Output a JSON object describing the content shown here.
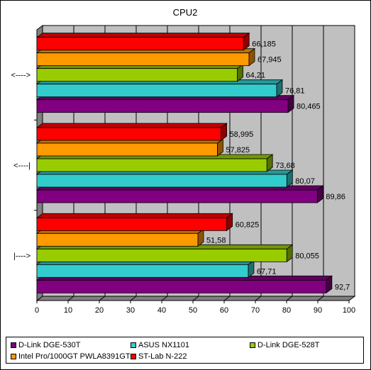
{
  "chart_data": {
    "type": "bar",
    "orientation": "horizontal",
    "title": "CPU2",
    "categories": [
      "<---->",
      "<----|",
      "|---->"
    ],
    "series": [
      {
        "name": "D-Link DGE-530T",
        "color": "#800080",
        "values": [
          80.465,
          89.86,
          92.7
        ],
        "labels": [
          "80,465",
          "89,86",
          "92,7"
        ]
      },
      {
        "name": "ASUS NX1101",
        "color": "#33cccc",
        "values": [
          76.81,
          80.07,
          67.71
        ],
        "labels": [
          "76,81",
          "80,07",
          "67,71"
        ]
      },
      {
        "name": "D-Link DGE-528T",
        "color": "#99cc00",
        "values": [
          64.21,
          73.68,
          80.055
        ],
        "labels": [
          "64,21",
          "73,68",
          "80,055"
        ]
      },
      {
        "name": "Intel Pro/1000GT PWLA8391GT",
        "color": "#ff9900",
        "values": [
          67.945,
          57.825,
          51.58
        ],
        "labels": [
          "67,945",
          "57,825",
          "51,58"
        ]
      },
      {
        "name": "ST-Lab N-222",
        "color": "#ff0000",
        "values": [
          66.185,
          58.995,
          60.825
        ],
        "labels": [
          "66,185",
          "58,995",
          "60,825"
        ]
      }
    ],
    "xlim": [
      0,
      100
    ],
    "xticks": [
      "0",
      "10",
      "20",
      "30",
      "40",
      "50",
      "60",
      "70",
      "80",
      "90",
      "100"
    ],
    "grid": true,
    "plot_background": "#c0c0c0",
    "legend_position": "bottom"
  }
}
